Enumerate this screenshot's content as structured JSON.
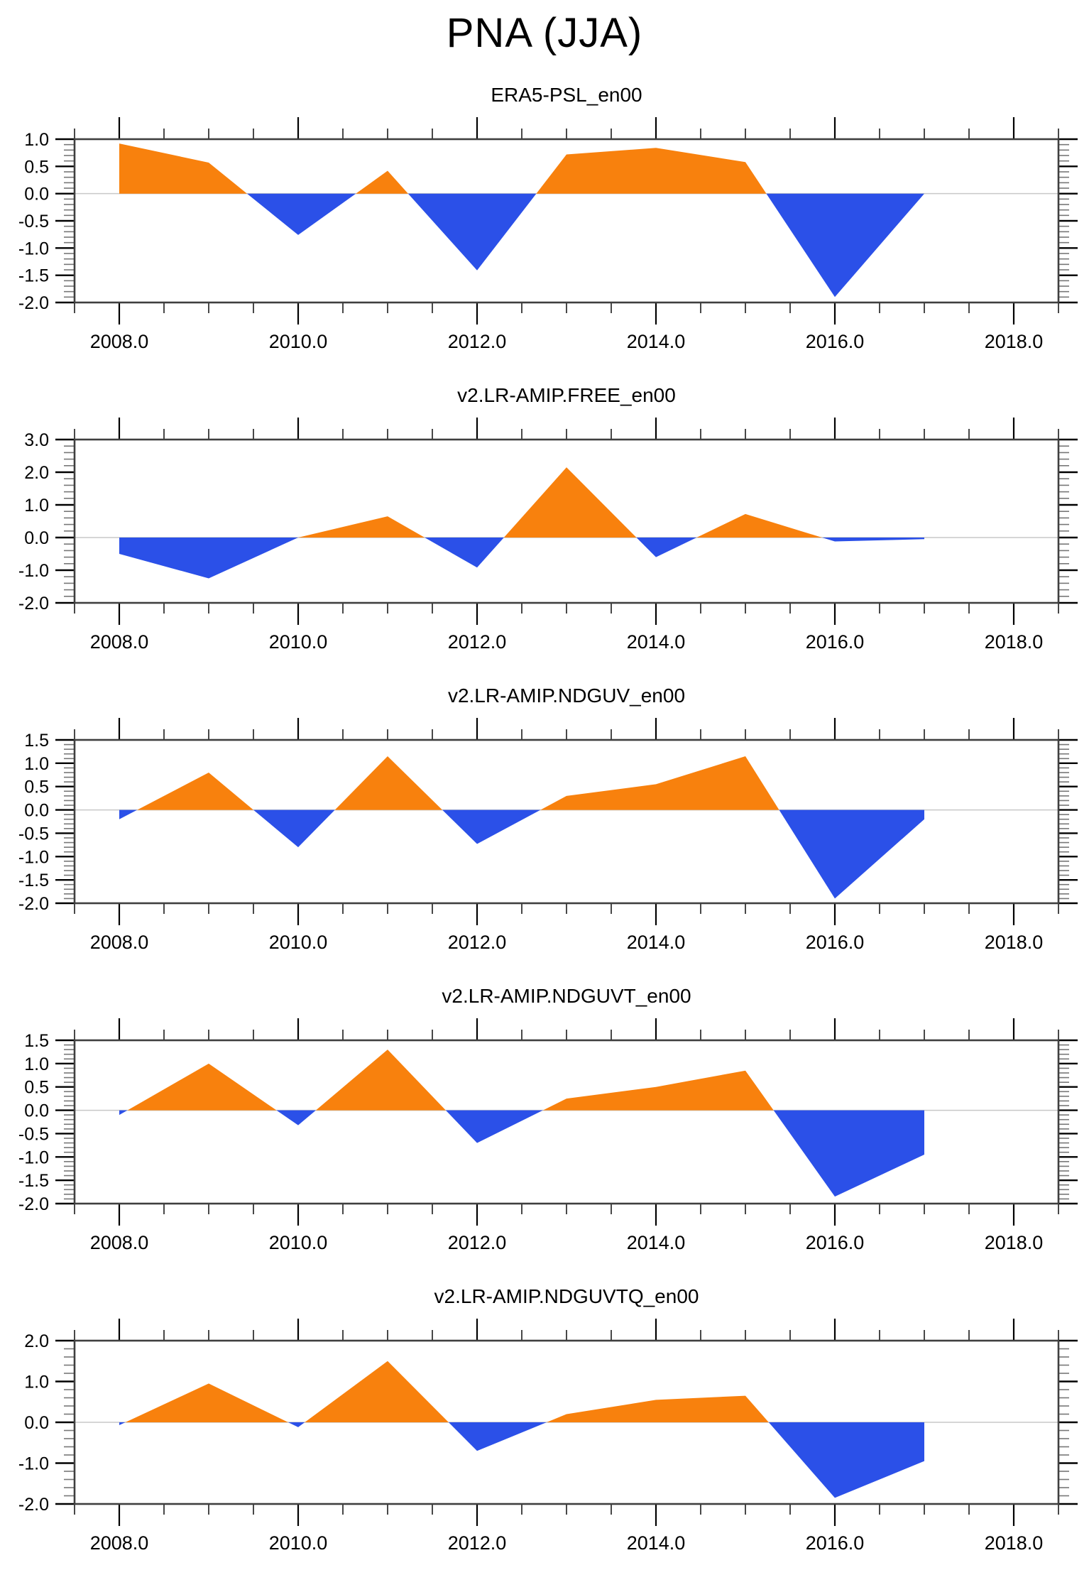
{
  "page": {
    "title": "PNA (JJA)"
  },
  "colors": {
    "positive_fill": "#F8810D",
    "negative_fill": "#2B50E8",
    "frame": "#3f3f3f",
    "tick_major": "#000000",
    "tick_minor": "#777777",
    "zero_line": "#c8c8c8",
    "text": "#000000"
  },
  "x_axis": {
    "xlim": [
      2007.5,
      2018.5
    ],
    "minor_tick_step_years": 0.5,
    "major_tick_years": [
      2008,
      2010,
      2012,
      2014,
      2016,
      2018
    ],
    "major_tick_labels": [
      "2008.0",
      "2010.0",
      "2012.0",
      "2014.0",
      "2016.0",
      "2018.0"
    ]
  },
  "years": [
    2008,
    2009,
    2010,
    2011,
    2012,
    2013,
    2014,
    2015,
    2016,
    2017
  ],
  "chart_data": [
    {
      "type": "area",
      "title": "ERA5-PSL_en00",
      "values": [
        0.92,
        0.57,
        -0.76,
        0.42,
        -1.41,
        0.72,
        0.84,
        0.58,
        -1.9,
        0.0
      ],
      "ylim": [
        -2.0,
        1.0
      ],
      "ytick_major_step": 0.5,
      "ytick_minor_step": 0.1,
      "ytick_labels": [
        "1.0",
        "0.5",
        "0.0",
        "-0.5",
        "-1.0",
        "-1.5",
        "-2.0"
      ],
      "grid": "zero-line-only",
      "legend": "none"
    },
    {
      "type": "area",
      "title": "v2.LR-AMIP.FREE_en00",
      "values": [
        -0.5,
        -1.25,
        0.0,
        0.65,
        -0.92,
        2.15,
        -0.6,
        0.72,
        -0.12,
        -0.05
      ],
      "ylim": [
        -2.0,
        3.0
      ],
      "ytick_major_step": 1.0,
      "ytick_minor_step": 0.2,
      "ytick_labels": [
        "3.0",
        "2.0",
        "1.0",
        "0.0",
        "-1.0",
        "-2.0"
      ],
      "grid": "zero-line-only",
      "legend": "none"
    },
    {
      "type": "area",
      "title": "v2.LR-AMIP.NDGUV_en00",
      "values": [
        -0.2,
        0.8,
        -0.8,
        1.15,
        -0.73,
        0.3,
        0.55,
        1.15,
        -1.9,
        -0.2
      ],
      "ylim": [
        -2.0,
        1.5
      ],
      "ytick_major_step": 0.5,
      "ytick_minor_step": 0.1,
      "ytick_labels": [
        "1.5",
        "1.0",
        "0.5",
        "0.0",
        "-0.5",
        "-1.0",
        "-1.5",
        "-2.0"
      ],
      "grid": "zero-line-only",
      "legend": "none"
    },
    {
      "type": "area",
      "title": "v2.LR-AMIP.NDGUVT_en00",
      "values": [
        -0.1,
        1.0,
        -0.32,
        1.3,
        -0.7,
        0.25,
        0.5,
        0.85,
        -1.85,
        -0.95
      ],
      "ylim": [
        -2.0,
        1.5
      ],
      "ytick_major_step": 0.5,
      "ytick_minor_step": 0.1,
      "ytick_labels": [
        "1.5",
        "1.0",
        "0.5",
        "0.0",
        "-0.5",
        "-1.0",
        "-1.5",
        "-2.0"
      ],
      "grid": "zero-line-only",
      "legend": "none"
    },
    {
      "type": "area",
      "title": "v2.LR-AMIP.NDGUVTQ_en00",
      "values": [
        -0.07,
        0.95,
        -0.12,
        1.5,
        -0.7,
        0.2,
        0.55,
        0.65,
        -1.85,
        -0.95
      ],
      "ylim": [
        -2.0,
        2.0
      ],
      "ytick_major_step": 1.0,
      "ytick_minor_step": 0.2,
      "ytick_labels": [
        "2.0",
        "1.0",
        "0.0",
        "-1.0",
        "-2.0"
      ],
      "grid": "zero-line-only",
      "legend": "none"
    }
  ]
}
